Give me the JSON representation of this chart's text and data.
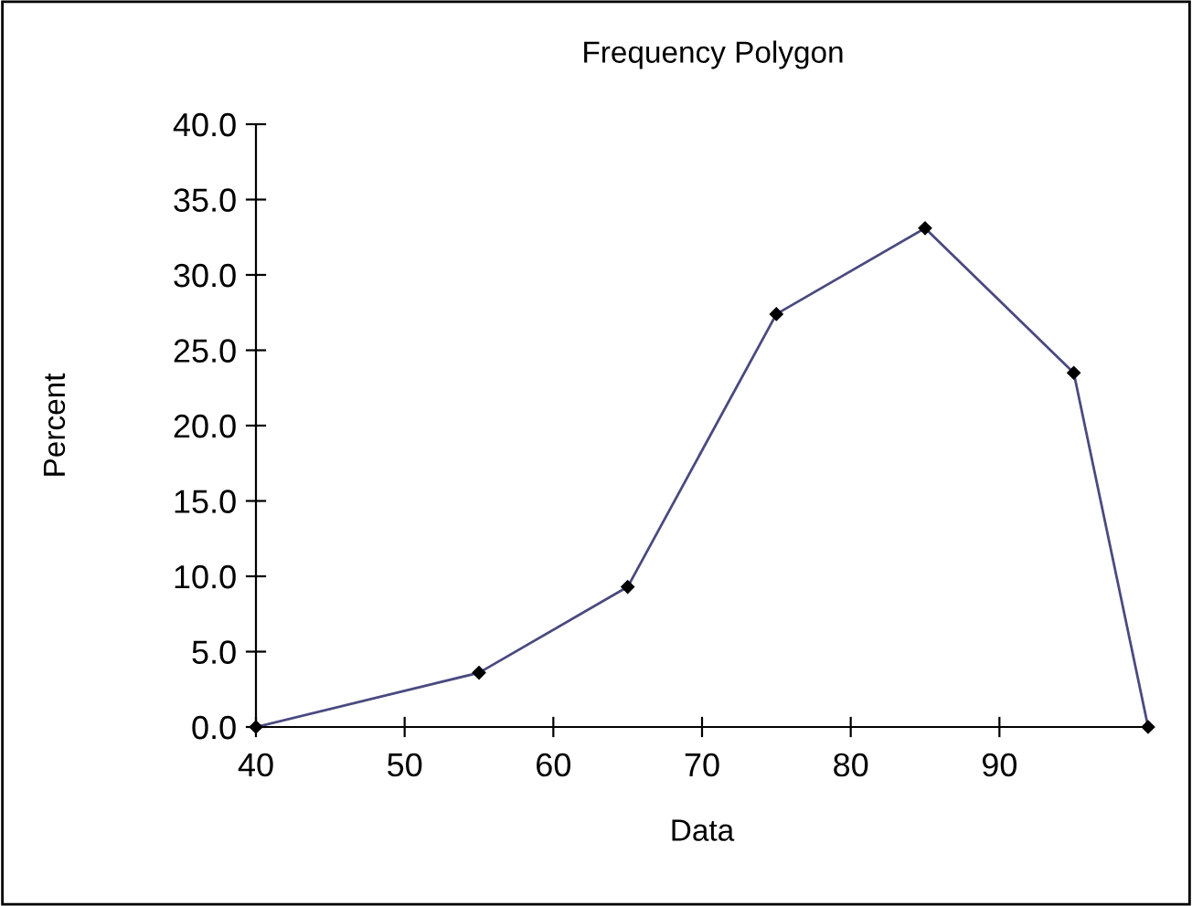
{
  "chart_data": {
    "type": "line",
    "title": "Frequency Polygon",
    "xlabel": "Data",
    "ylabel": "Percent",
    "x": [
      40,
      55,
      65,
      75,
      85,
      95,
      100
    ],
    "series": [
      {
        "color": "#4a4a80",
        "values": [
          0,
          3.6,
          9.3,
          27.4,
          33.1,
          23.5,
          0
        ]
      }
    ],
    "xlim": [
      40,
      100
    ],
    "xticks": [
      40,
      50,
      60,
      70,
      80,
      90
    ],
    "ylim": [
      0,
      40
    ],
    "yticks": [
      {
        "value": 0,
        "label": "0.0"
      },
      {
        "value": 5,
        "label": "5.0"
      },
      {
        "value": 10,
        "label": "10.0"
      },
      {
        "value": 15,
        "label": "15.0"
      },
      {
        "value": 20,
        "label": "20.0"
      },
      {
        "value": 25,
        "label": "25.0"
      },
      {
        "value": 30,
        "label": "30.0"
      },
      {
        "value": 35,
        "label": "35.0"
      },
      {
        "value": 40,
        "label": "40.0"
      }
    ],
    "marker": "diamond",
    "line_style": "solid",
    "grid": false,
    "legend": false
  }
}
